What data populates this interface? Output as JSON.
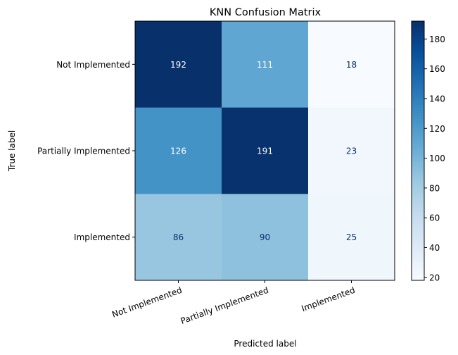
{
  "chart_data": {
    "type": "heatmap",
    "title": "KNN Confusion Matrix",
    "xlabel": "Predicted label",
    "ylabel": "True label",
    "x_categories": [
      "Not Implemented",
      "Partially Implemented",
      "Implemented"
    ],
    "y_categories": [
      "Not Implemented",
      "Partially Implemented",
      "Implemented"
    ],
    "values": [
      [
        192,
        111,
        18
      ],
      [
        126,
        191,
        23
      ],
      [
        86,
        90,
        25
      ]
    ],
    "colormap": "Blues",
    "color_min": 18,
    "color_max": 192,
    "colorbar_ticks": [
      20,
      40,
      60,
      80,
      100,
      120,
      140,
      160,
      180
    ],
    "x_tick_rotation_deg": 20
  }
}
